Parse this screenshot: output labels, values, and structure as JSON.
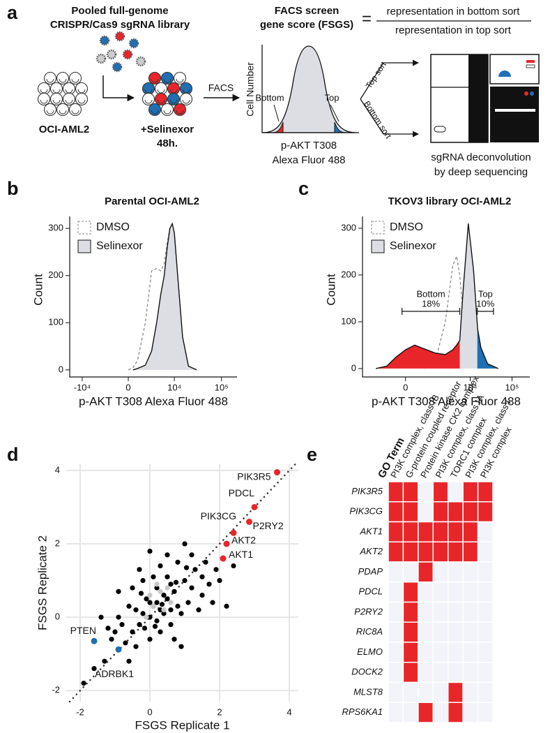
{
  "panel_labels": [
    "a",
    "b",
    "c",
    "d",
    "e"
  ],
  "schematic": {
    "library_title": [
      "Pooled full-genome",
      "CRISPR/Cas9 sgRNA library"
    ],
    "cell_line": "OCI-AML2",
    "treatment": [
      "+Selinexor",
      "48h."
    ],
    "facs": "FACS",
    "score_title": [
      "FACS screen",
      "gene score (FSGS)"
    ],
    "equals": "=",
    "numerator": "representation in bottom sort",
    "denominator": "representation in top sort",
    "y_label": "Cell Number",
    "bottom": "Bottom",
    "top": "Top",
    "x_label": [
      "p-AKT T308",
      "Alexa Fluor 488"
    ],
    "top_sort": "Top sort",
    "bottom_sort": "Bottom sort",
    "readout": [
      "sgRNA deconvolution",
      "by deep sequencing"
    ]
  },
  "chart_data": [
    {
      "type": "area",
      "title": "Parental OCI-AML2",
      "x_label": "p-AKT T308 Alexa Fluor 488",
      "y_label": "Count",
      "xscale": "biexponential",
      "xlim": [
        -18500,
        213000
      ],
      "xticks": [
        {
          "value": -10000,
          "label": "-10⁴"
        },
        0,
        {
          "value": 10000,
          "label": "10⁴"
        },
        {
          "value": 100000,
          "label": "10⁵"
        }
      ],
      "ylim": [
        -15,
        355
      ],
      "yticks": [
        0,
        100,
        200,
        300
      ],
      "legend": "upper left",
      "series": [
        {
          "name": "DMSO",
          "color": "#8a8a8a",
          "dashed": true,
          "x": [
            0,
            500,
            1000,
            2000,
            3000,
            4000,
            5000,
            6000,
            7000,
            8000,
            9000,
            10000,
            12000,
            15000,
            20000,
            30000
          ],
          "values": [
            0,
            5,
            20,
            100,
            210,
            215,
            210,
            225,
            270,
            300,
            310,
            290,
            190,
            70,
            8,
            0
          ]
        },
        {
          "name": "Selinexor",
          "color": "#111111",
          "fill": "#dcdee3",
          "x": [
            500,
            1000,
            2000,
            3000,
            4000,
            5000,
            6000,
            7000,
            8000,
            9000,
            10000,
            12000,
            15000,
            20000,
            30000
          ],
          "values": [
            0,
            3,
            10,
            40,
            100,
            160,
            200,
            260,
            300,
            310,
            290,
            190,
            70,
            8,
            0
          ]
        }
      ]
    },
    {
      "type": "area",
      "title": "TKOV3 library OCI-AML2",
      "x_label": "p-AKT T308 Alexa Fluor 488",
      "y_label": "Count",
      "xscale": "biexponential",
      "xlim": [
        -3000,
        267000
      ],
      "xticks": [
        0,
        {
          "value": 10000,
          "label": "10⁴"
        },
        {
          "value": 100000,
          "label": "10⁵"
        }
      ],
      "ylim": [
        -18,
        355
      ],
      "yticks": [
        0,
        100,
        200,
        300
      ],
      "legend": "upper left",
      "series": [
        {
          "name": "DMSO",
          "color": "#8a8a8a",
          "dashed": true,
          "x": [
            700,
            1400,
            2500,
            3800,
            4700,
            5600,
            6800,
            9000,
            12000,
            18000
          ],
          "values": [
            0,
            15,
            100,
            220,
            240,
            200,
            110,
            35,
            8,
            0
          ]
        },
        {
          "name": "Selinexor",
          "color": "#111111",
          "fill": "#dcdee3",
          "x": [
            -1400,
            -700,
            -300,
            0,
            300,
            700,
            1400,
            2500,
            3800,
            4700,
            5600,
            6800,
            9000,
            12000,
            15000,
            18000,
            26000,
            47000
          ],
          "values": [
            0,
            5,
            25,
            40,
            50,
            42,
            33,
            30,
            40,
            50,
            60,
            170,
            310,
            210,
            85,
            45,
            10,
            0
          ]
        }
      ],
      "gates": [
        {
          "name": "Bottom",
          "percent": {
            "value": 18,
            "label": "18%"
          },
          "range": [
            -110,
            5600
          ],
          "color": "#e8262a"
        },
        {
          "name": "Top",
          "percent": {
            "value": 10,
            "label": "10%"
          },
          "range": [
            14800,
            36000
          ],
          "color": "#1f6fb4"
        }
      ]
    },
    {
      "type": "scatter",
      "x_label": "FSGS Replicate 1",
      "y_label": "FSGS Replicate 2",
      "xlim": [
        -2.4,
        4.26
      ],
      "ylim": [
        -2.3,
        4.17
      ],
      "xticks": [
        -2,
        0,
        2,
        4
      ],
      "yticks": [
        -2,
        0,
        2,
        4
      ],
      "grid": true,
      "diagonal": true,
      "series": [
        {
          "color": "#000000",
          "x": [
            -0.5,
            -0.3,
            -0.2,
            0,
            0.1,
            0.2,
            0.3,
            0.4,
            0.5,
            0.6,
            0.7,
            -0.1,
            0.2,
            0.4,
            -0.4,
            0.8,
            1.0,
            1.2,
            1.3,
            1.5,
            1.6,
            1.7,
            1.9,
            2.0,
            -0.6,
            -0.8,
            -0.9,
            -1.0,
            -0.7,
            -1.1,
            -0.4,
            0.0,
            0.3,
            0.6,
            0.9,
            1.1,
            -1.3,
            -1.2,
            0.1,
            0.3,
            0.5,
            -0.2,
            0.8,
            1.4,
            1.8,
            2.2,
            0.7,
            -0.5,
            -0.3,
            0.0,
            1.0,
            -1.6,
            -1.9,
            -1.4,
            -0.9,
            2.4,
            0.9,
            1.2,
            -0.6,
            0.2,
            0.6,
            0.0,
            0.35,
            -0.15,
            0.5,
            1.5,
            0.15,
            -0.25,
            0.75,
            1.05
          ],
          "values": [
            -0.4,
            -0.2,
            0.1,
            0,
            0.3,
            0.4,
            0.2,
            0.6,
            0.5,
            0.9,
            0.7,
            0.5,
            -0.1,
            0.1,
            0.2,
            0.3,
            1.0,
            0.8,
            1.3,
            1.1,
            1.5,
            0.9,
            1.3,
            1.0,
            0.3,
            -0.2,
            0.0,
            -0.4,
            -0.7,
            -0.6,
            -0.8,
            -0.6,
            -0.4,
            -0.2,
            0.1,
            0.4,
            -1.2,
            -0.3,
            1.1,
            1.4,
            1.7,
            1.0,
            1.5,
            0.2,
            0.4,
            0.3,
            -0.6,
            0.8,
            1.3,
            1.8,
            2.0,
            -1.4,
            -1.8,
            0.0,
            0.7,
            1.4,
            -0.8,
            1.7,
            -1.2,
            0.8,
            0.2,
            0.4,
            0.35,
            -0.3,
            1.1,
            0.6,
            -0.25,
            0.65,
            0.95,
            1.35
          ]
        },
        {
          "color": "#c8c8c8",
          "x": [
            0.1,
            0.3,
            0.4,
            0.2,
            -0.1,
            0.6,
            0.0,
            0.5
          ],
          "values": [
            0.3,
            0.7,
            0.2,
            0.9,
            0.0,
            0.4,
            0.6,
            0.8
          ]
        },
        {
          "color": "#e8262a",
          "labels": [
            "PIK3R5",
            "PDCL",
            "PIK3CG",
            "P2RY2",
            "AKT2",
            "AKT1"
          ],
          "x": [
            3.65,
            3.0,
            2.4,
            2.85,
            2.2,
            2.1
          ],
          "values": [
            3.95,
            3.0,
            2.3,
            2.6,
            2.0,
            1.6
          ]
        },
        {
          "color": "#1f6fb4",
          "labels": [
            "PTEN",
            "ADRBK1"
          ],
          "x": [
            -1.6,
            -0.9
          ],
          "values": [
            -0.65,
            -0.88
          ]
        }
      ]
    },
    {
      "type": "heatmap",
      "column_title": "GO Term",
      "columns": [
        "PI3K complex, class IB",
        "G-protein coupled receptor",
        "Protein kinase CK2 complex",
        "PI3K complex, class IA",
        "TORC1 complex",
        "PI3K complex, class I",
        "PI3K complex"
      ],
      "rows": [
        "PIK3R5",
        "PIK3CG",
        "AKT1",
        "AKT2",
        "PDAP",
        "PDCL",
        "P2RY2",
        "RIC8A",
        "ELMO",
        "DOCK2",
        "MLST8",
        "RPS6KA1"
      ],
      "values": [
        [
          1,
          1,
          0,
          1,
          0,
          1,
          1
        ],
        [
          1,
          1,
          0,
          1,
          1,
          1,
          1
        ],
        [
          1,
          1,
          1,
          1,
          1,
          1,
          0
        ],
        [
          1,
          1,
          1,
          1,
          1,
          1,
          0
        ],
        [
          0,
          0,
          1,
          0,
          0,
          0,
          0
        ],
        [
          0,
          1,
          0,
          0,
          0,
          0,
          0
        ],
        [
          0,
          1,
          0,
          0,
          0,
          0,
          0
        ],
        [
          0,
          1,
          0,
          0,
          0,
          0,
          0
        ],
        [
          0,
          1,
          0,
          0,
          0,
          0,
          0
        ],
        [
          0,
          1,
          0,
          0,
          0,
          0,
          0
        ],
        [
          0,
          0,
          0,
          0,
          1,
          0,
          0
        ],
        [
          0,
          0,
          1,
          0,
          1,
          0,
          0
        ]
      ],
      "colors": [
        "#f2f4fa",
        "#e8262a"
      ]
    }
  ]
}
